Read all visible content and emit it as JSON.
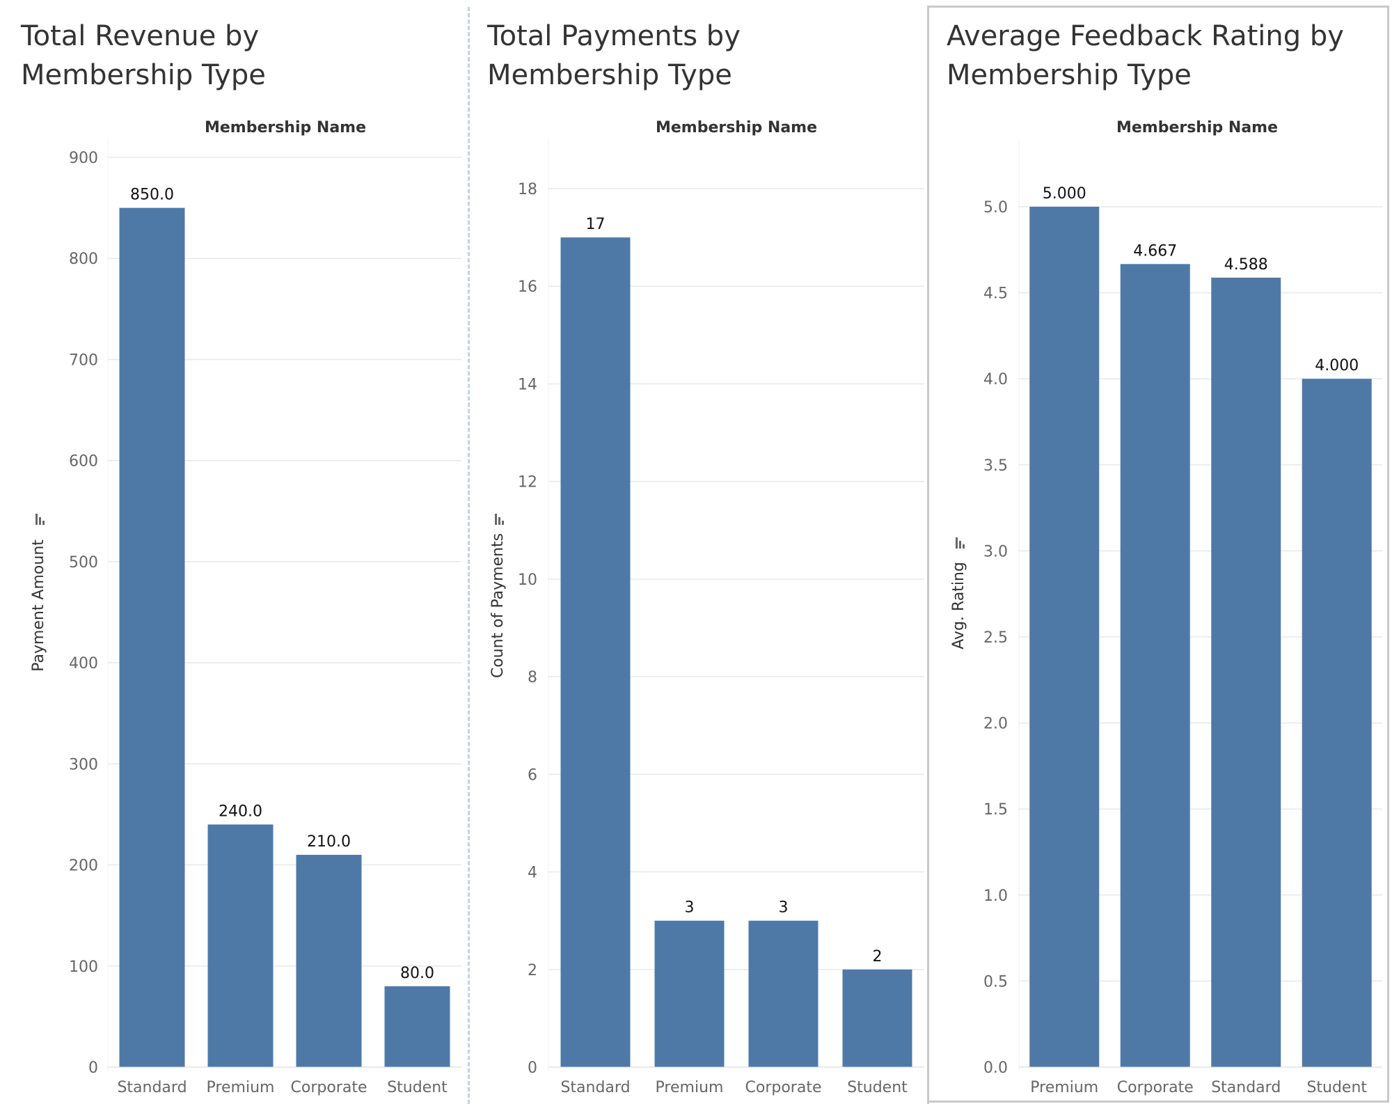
{
  "colors": {
    "bar": "#4e79a7",
    "grid": "#e8e8e8",
    "tick_text": "#666666",
    "label_text": "#111111",
    "title_text": "#333333"
  },
  "chart_data": [
    {
      "type": "bar",
      "title": "Total Revenue by Membership Type",
      "header": "Membership Name",
      "ylabel": "Payment Amount",
      "categories": [
        "Standard",
        "Premium",
        "Corporate",
        "Student"
      ],
      "values": [
        850.0,
        240.0,
        210.0,
        80.0
      ],
      "value_labels": [
        "850.0",
        "240.0",
        "210.0",
        "80.0"
      ],
      "yticks": [
        0,
        100,
        200,
        300,
        400,
        500,
        600,
        700,
        800,
        900
      ],
      "ylim": [
        0,
        900
      ],
      "grid": true,
      "sort_icon": "sort-descending-icon"
    },
    {
      "type": "bar",
      "title": "Total Payments by Membership Type",
      "header": "Membership Name",
      "ylabel": "Count of Payments",
      "categories": [
        "Standard",
        "Premium",
        "Corporate",
        "Student"
      ],
      "values": [
        17,
        3,
        3,
        2
      ],
      "value_labels": [
        "17",
        "3",
        "3",
        "2"
      ],
      "yticks": [
        0,
        2,
        4,
        6,
        8,
        10,
        12,
        14,
        16,
        18
      ],
      "ylim": [
        0,
        18
      ],
      "grid": true,
      "sort_icon": "sort-descending-icon"
    },
    {
      "type": "bar",
      "title": "Average Feedback Rating by Membership Type",
      "header": "Membership Name",
      "ylabel": "Avg. Rating",
      "categories": [
        "Premium",
        "Corporate",
        "Standard",
        "Student"
      ],
      "values": [
        5.0,
        4.667,
        4.588,
        4.0
      ],
      "value_labels": [
        "5.000",
        "4.667",
        "4.588",
        "4.000"
      ],
      "yticks": [
        "0.0",
        "0.5",
        "1.0",
        "1.5",
        "2.0",
        "2.5",
        "3.0",
        "3.5",
        "4.0",
        "4.5",
        "5.0"
      ],
      "ylim": [
        0,
        5
      ],
      "grid": true,
      "sort_icon": "sort-descending-icon"
    }
  ]
}
